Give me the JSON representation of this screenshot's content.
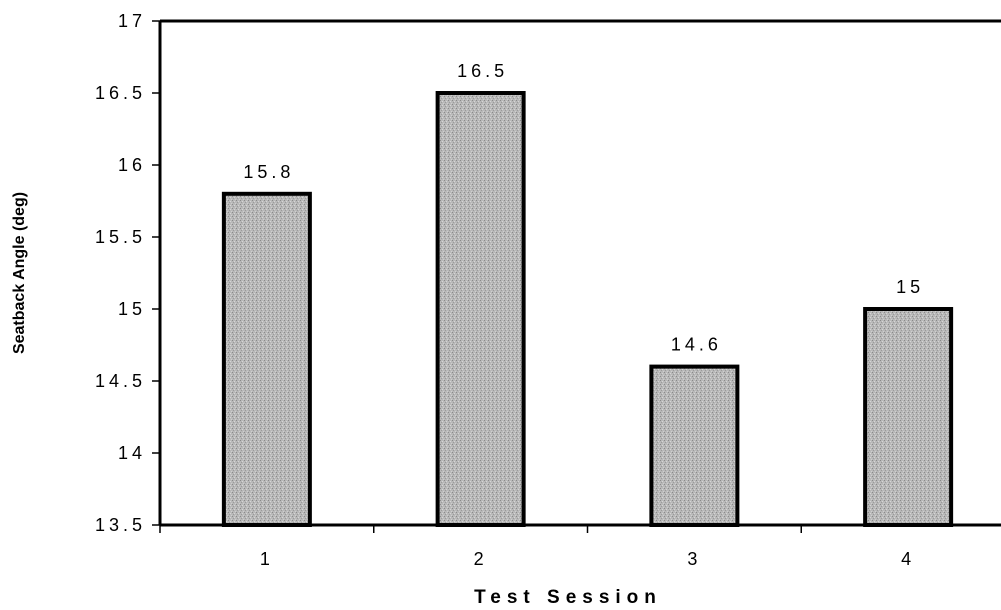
{
  "chart_data": {
    "type": "bar",
    "title": "",
    "xlabel": "Test Session",
    "ylabel": "Seatback Angle (deg)",
    "categories": [
      "1",
      "2",
      "3",
      "4"
    ],
    "values": [
      15.8,
      16.5,
      14.6,
      15
    ],
    "data_labels": [
      "15.8",
      "16.5",
      "14.6",
      "15"
    ],
    "ylim": [
      13.5,
      17
    ],
    "yticks": [
      13.5,
      14,
      14.5,
      15,
      15.5,
      16,
      16.5,
      17
    ],
    "ytick_labels": [
      "13.5",
      "14",
      "14.5",
      "15",
      "15.5",
      "16",
      "16.5",
      "17"
    ],
    "grid": false,
    "legend": "none",
    "colors": {
      "bar_fill": "#b4b4b4",
      "bar_stroke": "#000000",
      "axis": "#000000"
    }
  }
}
